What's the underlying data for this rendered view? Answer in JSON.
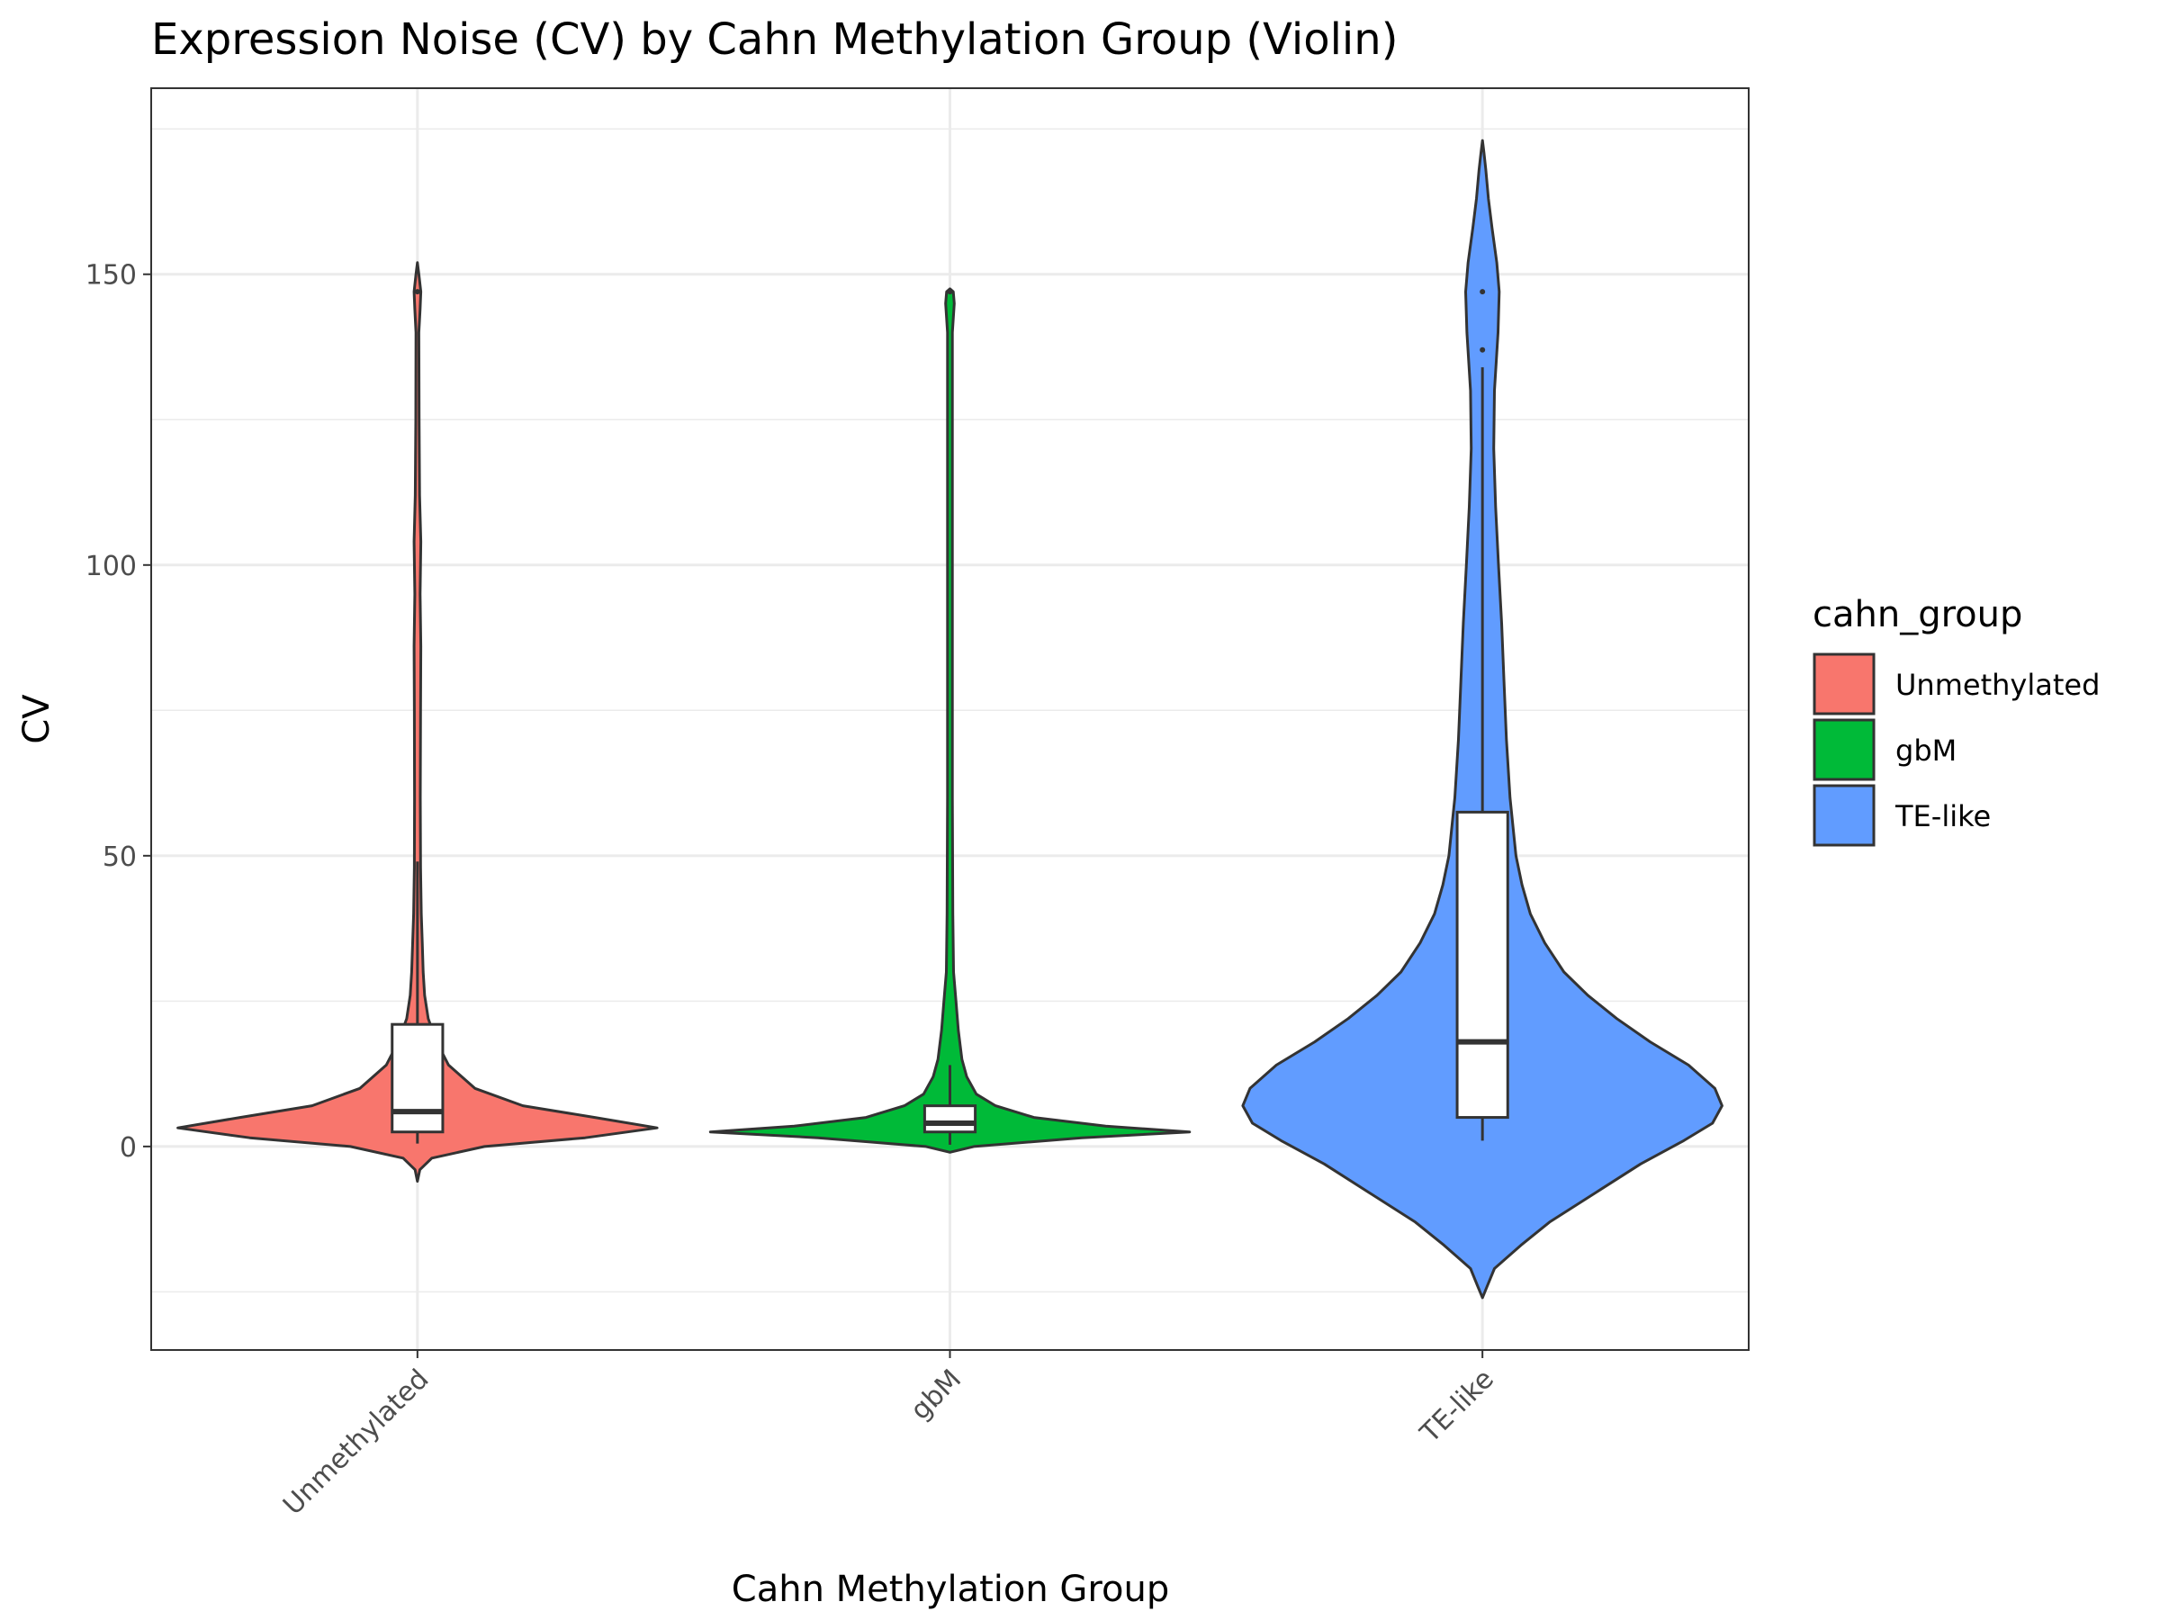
{
  "chart_data": {
    "type": "violin",
    "title": "Expression Noise (CV) by Cahn Methylation Group (Violin)",
    "xlabel": "Cahn Methylation Group",
    "ylabel": "CV",
    "ylim": [
      -35,
      182
    ],
    "y_ticks": [
      0,
      50,
      100,
      150
    ],
    "grid": true,
    "legend_position": "right",
    "legend_title": "cahn_group",
    "categories": [
      "Unmethylated",
      "gbM",
      "TE-like"
    ],
    "colors": [
      "#F8766D",
      "#00BA38",
      "#619CFF"
    ],
    "box_stats": [
      {
        "name": "Unmethylated",
        "whisker_low": 0.5,
        "q1": 2.5,
        "median": 6,
        "q3": 21,
        "whisker_high": 49,
        "outliers": [
          147
        ]
      },
      {
        "name": "gbM",
        "whisker_low": 0.3,
        "q1": 2.5,
        "median": 4,
        "q3": 7,
        "whisker_high": 14,
        "outliers": [
          147
        ]
      },
      {
        "name": "TE-like",
        "whisker_low": 1,
        "q1": 5,
        "median": 18,
        "q3": 57.5,
        "whisker_high": 134,
        "outliers": [
          137,
          147
        ]
      }
    ],
    "violins": [
      {
        "name": "Unmethylated",
        "y_range": [
          -6,
          152
        ],
        "profile": [
          [
            -6,
            0.0
          ],
          [
            -4,
            0.01
          ],
          [
            -2,
            0.06
          ],
          [
            0,
            0.28
          ],
          [
            1.5,
            0.7
          ],
          [
            3.2,
            1.0
          ],
          [
            5,
            0.74
          ],
          [
            7,
            0.44
          ],
          [
            10,
            0.24
          ],
          [
            14,
            0.13
          ],
          [
            18,
            0.08
          ],
          [
            22,
            0.045
          ],
          [
            26,
            0.03
          ],
          [
            30,
            0.024
          ],
          [
            35,
            0.02
          ],
          [
            40,
            0.016
          ],
          [
            48,
            0.013
          ],
          [
            60,
            0.012
          ],
          [
            75,
            0.013
          ],
          [
            86,
            0.014
          ],
          [
            95,
            0.011
          ],
          [
            104,
            0.014
          ],
          [
            112,
            0.009
          ],
          [
            125,
            0.007
          ],
          [
            140,
            0.006
          ],
          [
            144,
            0.011
          ],
          [
            147,
            0.014
          ],
          [
            150,
            0.006
          ],
          [
            152,
            0.0
          ]
        ]
      },
      {
        "name": "gbM",
        "y_range": [
          -1,
          147.5
        ],
        "profile": [
          [
            -1,
            0.0
          ],
          [
            0,
            0.1
          ],
          [
            1.5,
            0.55
          ],
          [
            2.5,
            1.0
          ],
          [
            3.5,
            0.65
          ],
          [
            5,
            0.35
          ],
          [
            7,
            0.19
          ],
          [
            9,
            0.11
          ],
          [
            12,
            0.07
          ],
          [
            15,
            0.05
          ],
          [
            20,
            0.035
          ],
          [
            25,
            0.025
          ],
          [
            30,
            0.015
          ],
          [
            40,
            0.012
          ],
          [
            60,
            0.01
          ],
          [
            80,
            0.01
          ],
          [
            100,
            0.01
          ],
          [
            120,
            0.01
          ],
          [
            140,
            0.01
          ],
          [
            145,
            0.018
          ],
          [
            147,
            0.014
          ],
          [
            147.5,
            0.0
          ]
        ]
      },
      {
        "name": "TE-like",
        "y_range": [
          -26,
          173
        ],
        "profile": [
          [
            -26,
            0.0
          ],
          [
            -24,
            0.02
          ],
          [
            -21,
            0.05
          ],
          [
            -17,
            0.16
          ],
          [
            -13,
            0.28
          ],
          [
            -8,
            0.47
          ],
          [
            -3,
            0.66
          ],
          [
            1,
            0.84
          ],
          [
            4,
            0.96
          ],
          [
            7,
            1.0
          ],
          [
            10,
            0.97
          ],
          [
            14,
            0.86
          ],
          [
            18,
            0.7
          ],
          [
            22,
            0.56
          ],
          [
            26,
            0.44
          ],
          [
            30,
            0.34
          ],
          [
            35,
            0.26
          ],
          [
            40,
            0.2
          ],
          [
            45,
            0.165
          ],
          [
            50,
            0.14
          ],
          [
            60,
            0.115
          ],
          [
            70,
            0.1
          ],
          [
            80,
            0.09
          ],
          [
            90,
            0.08
          ],
          [
            100,
            0.067
          ],
          [
            110,
            0.055
          ],
          [
            120,
            0.047
          ],
          [
            130,
            0.05
          ],
          [
            140,
            0.065
          ],
          [
            147,
            0.07
          ],
          [
            152,
            0.06
          ],
          [
            158,
            0.04
          ],
          [
            163,
            0.025
          ],
          [
            168,
            0.014
          ],
          [
            171,
            0.006
          ],
          [
            173,
            0.0
          ]
        ]
      }
    ]
  }
}
